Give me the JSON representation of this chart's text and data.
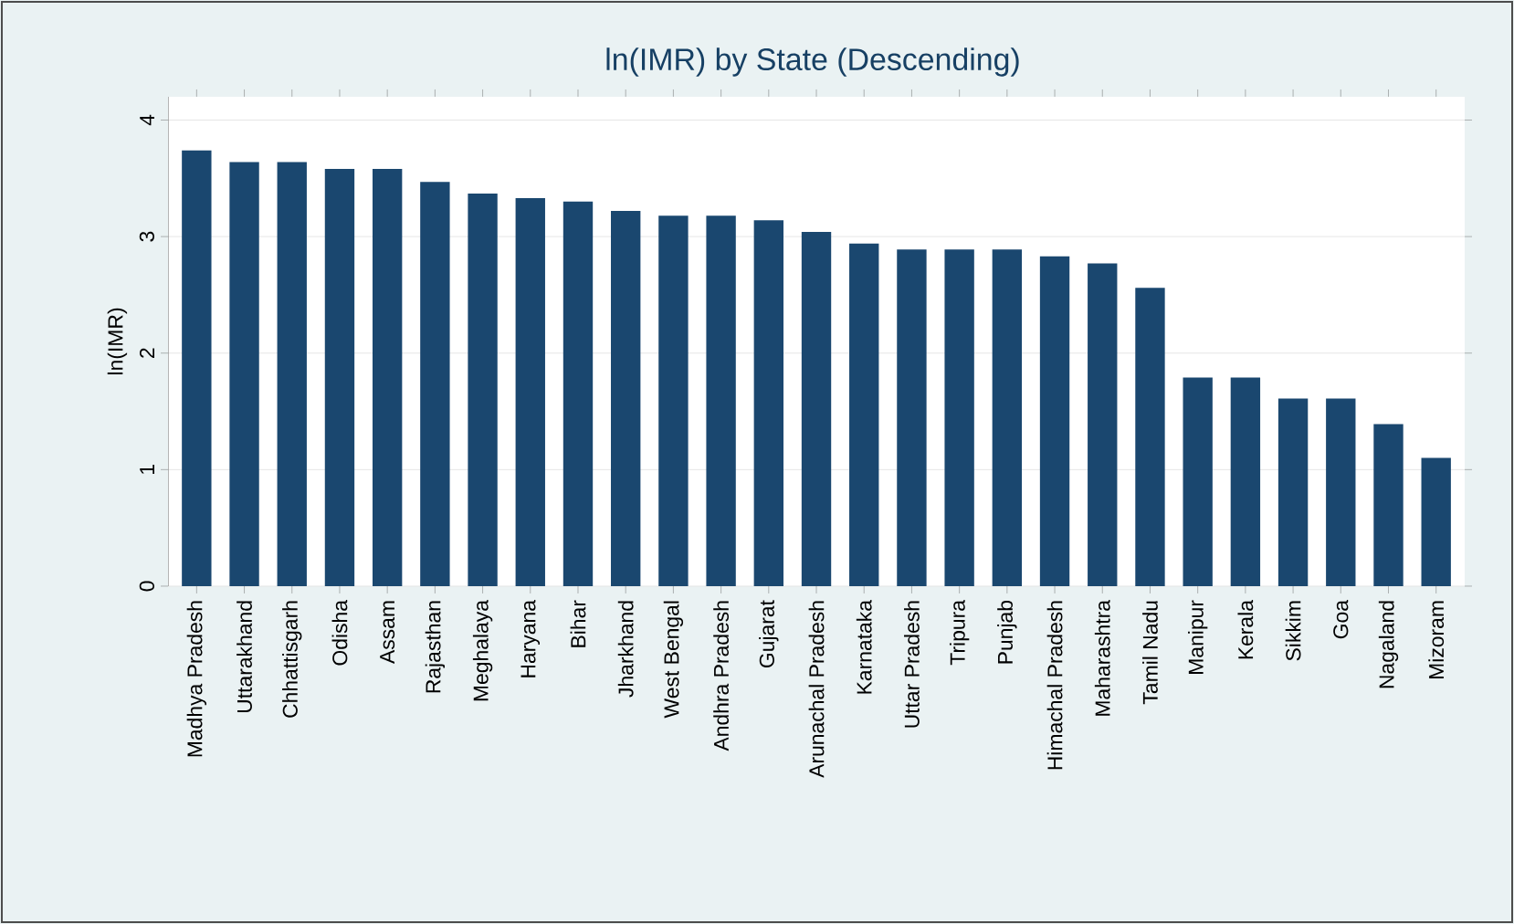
{
  "chart_data": {
    "type": "bar",
    "title": "ln(IMR) by State (Descending)",
    "ylabel": "ln(IMR)",
    "categories": [
      "Madhya Pradesh",
      "Uttarakhand",
      "Chhattisgarh",
      "Odisha",
      "Assam",
      "Rajasthan",
      "Meghalaya",
      "Haryana",
      "Bihar",
      "Jharkhand",
      "West Bengal",
      "Andhra Pradesh",
      "Gujarat",
      "Arunachal Pradesh",
      "Karnataka",
      "Uttar Pradesh",
      "Tripura",
      "Punjab",
      "Himachal Pradesh",
      "Maharashtra",
      "Tamil Nadu",
      "Manipur",
      "Kerala",
      "Sikkim",
      "Goa",
      "Nagaland",
      "Mizoram"
    ],
    "values": [
      3.74,
      3.64,
      3.64,
      3.58,
      3.58,
      3.47,
      3.37,
      3.33,
      3.3,
      3.22,
      3.18,
      3.18,
      3.14,
      3.04,
      2.94,
      2.89,
      2.89,
      2.89,
      2.83,
      2.77,
      2.56,
      1.79,
      1.79,
      1.61,
      1.61,
      1.39,
      1.1
    ],
    "color": "#1a476f",
    "ylim": [
      0,
      4.2
    ],
    "yticks": [
      0,
      1,
      2,
      3,
      4
    ],
    "grid": "y"
  }
}
